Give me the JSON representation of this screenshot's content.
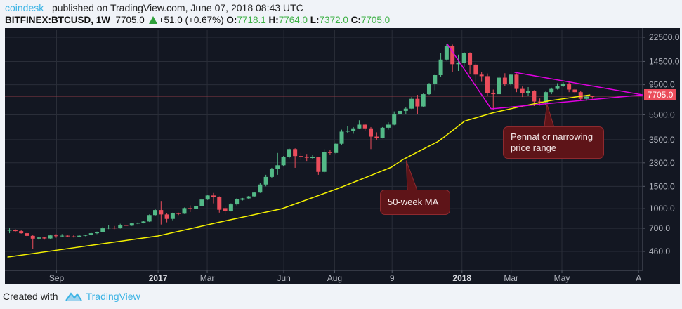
{
  "header": {
    "author": "coindesk_",
    "published": "published on TradingView.com, June 07, 2018 08:43 UTC",
    "symbol": "BITFINEX:BTCUSD, 1W",
    "last": "7705.0",
    "change": "+51.0 (+0.67%)",
    "o_label": "O:",
    "o": "7718.1",
    "h_label": "H:",
    "h": "7764.0",
    "l_label": "L:",
    "l": "7372.0",
    "c_label": "C:",
    "c": "7705.0"
  },
  "footer": {
    "created_with": "Created with",
    "brand": "TradingView"
  },
  "colors": {
    "up": "#53b987",
    "down": "#eb4d5c",
    "ma": "#f5f200",
    "pennant": "#e100e1",
    "background": "#131722",
    "grid": "#2a2e39"
  },
  "chart_data": {
    "type": "candlestick",
    "title": "",
    "xlabel": "",
    "ylabel": "",
    "y_scale": "log",
    "ylim": [
      326,
      25560
    ],
    "xlim": [
      "2016-07-01",
      "2018-08-06"
    ],
    "grid": true,
    "y_ticks": [
      "22500.0",
      "14500.0",
      "9500.0",
      "5500.0",
      "3500.0",
      "2300.0",
      "1500.0",
      "1000.0",
      "700.0",
      "460.0"
    ],
    "x_ticks": [
      {
        "date": "2016-09-01",
        "label": "Sep",
        "bold": false
      },
      {
        "date": "2017-01-01",
        "label": "2017",
        "bold": true
      },
      {
        "date": "2017-03-01",
        "label": "Mar",
        "bold": false
      },
      {
        "date": "2017-06-01",
        "label": "Jun",
        "bold": false
      },
      {
        "date": "2017-08-01",
        "label": "Aug",
        "bold": false
      },
      {
        "date": "2017-10-09",
        "label": "9",
        "bold": false
      },
      {
        "date": "2018-01-01",
        "label": "2018",
        "bold": true
      },
      {
        "date": "2018-03-01",
        "label": "Mar",
        "bold": false
      },
      {
        "date": "2018-05-01",
        "label": "May",
        "bold": false
      },
      {
        "date": "2018-08-01",
        "label": "A",
        "bold": false
      }
    ],
    "last_price_label": "7705.0",
    "last_price": 7705.0,
    "candles_columns": [
      "date",
      "open",
      "high",
      "low",
      "close"
    ],
    "candles": [
      [
        "2016-07-04",
        670,
        705,
        640,
        680
      ],
      [
        "2016-07-11",
        680,
        690,
        650,
        665
      ],
      [
        "2016-07-18",
        665,
        675,
        635,
        640
      ],
      [
        "2016-07-25",
        640,
        655,
        600,
        610
      ],
      [
        "2016-08-01",
        610,
        620,
        480,
        580
      ],
      [
        "2016-08-08",
        580,
        600,
        570,
        592
      ],
      [
        "2016-08-15",
        592,
        598,
        570,
        582
      ],
      [
        "2016-08-22",
        582,
        625,
        575,
        615
      ],
      [
        "2016-08-29",
        615,
        628,
        590,
        607
      ],
      [
        "2016-09-05",
        607,
        630,
        600,
        612
      ],
      [
        "2016-09-12",
        612,
        615,
        595,
        604
      ],
      [
        "2016-09-19",
        604,
        615,
        592,
        600
      ],
      [
        "2016-09-26",
        600,
        615,
        596,
        612
      ],
      [
        "2016-10-03",
        612,
        625,
        606,
        621
      ],
      [
        "2016-10-10",
        621,
        645,
        615,
        640
      ],
      [
        "2016-10-17",
        640,
        660,
        630,
        656
      ],
      [
        "2016-10-24",
        656,
        720,
        650,
        700
      ],
      [
        "2016-10-31",
        700,
        745,
        690,
        708
      ],
      [
        "2016-11-07",
        708,
        730,
        690,
        700
      ],
      [
        "2016-11-14",
        700,
        760,
        695,
        742
      ],
      [
        "2016-11-21",
        742,
        755,
        725,
        735
      ],
      [
        "2016-11-28",
        735,
        775,
        730,
        765
      ],
      [
        "2016-12-05",
        765,
        778,
        755,
        772
      ],
      [
        "2016-12-12",
        772,
        800,
        765,
        792
      ],
      [
        "2016-12-19",
        792,
        900,
        785,
        890
      ],
      [
        "2016-12-26",
        890,
        1000,
        880,
        975
      ],
      [
        "2017-01-02",
        975,
        1150,
        750,
        900
      ],
      [
        "2017-01-09",
        900,
        920,
        780,
        830
      ],
      [
        "2017-01-16",
        830,
        930,
        810,
        920
      ],
      [
        "2017-01-23",
        920,
        930,
        890,
        912
      ],
      [
        "2017-01-30",
        912,
        1020,
        908,
        1010
      ],
      [
        "2017-02-06",
        1010,
        1060,
        940,
        1000
      ],
      [
        "2017-02-13",
        1000,
        1050,
        990,
        1045
      ],
      [
        "2017-02-20",
        1045,
        1200,
        1040,
        1180
      ],
      [
        "2017-02-27",
        1180,
        1290,
        1170,
        1270
      ],
      [
        "2017-03-06",
        1270,
        1330,
        1100,
        1230
      ],
      [
        "2017-03-13",
        1230,
        1250,
        930,
        980
      ],
      [
        "2017-03-20",
        1010,
        1060,
        900,
        960
      ],
      [
        "2017-03-27",
        960,
        1100,
        950,
        1080
      ],
      [
        "2017-04-03",
        1080,
        1210,
        1060,
        1190
      ],
      [
        "2017-04-10",
        1175,
        1215,
        1160,
        1205
      ],
      [
        "2017-04-17",
        1205,
        1260,
        1195,
        1250
      ],
      [
        "2017-04-24",
        1250,
        1350,
        1240,
        1340
      ],
      [
        "2017-05-01",
        1340,
        1600,
        1330,
        1550
      ],
      [
        "2017-05-08",
        1550,
        1850,
        1500,
        1780
      ],
      [
        "2017-05-15",
        1780,
        2100,
        1750,
        2050
      ],
      [
        "2017-05-22",
        2050,
        2750,
        1850,
        2200
      ],
      [
        "2017-05-29",
        2200,
        2600,
        2150,
        2550
      ],
      [
        "2017-06-05",
        2550,
        2980,
        2500,
        2950
      ],
      [
        "2017-06-12",
        2950,
        2990,
        2100,
        2600
      ],
      [
        "2017-06-19",
        2600,
        2760,
        2420,
        2560
      ],
      [
        "2017-06-26",
        2560,
        2700,
        2380,
        2520
      ],
      [
        "2017-07-03",
        2520,
        2650,
        2450,
        2540
      ],
      [
        "2017-07-10",
        2540,
        2560,
        1850,
        1950
      ],
      [
        "2017-07-17",
        1950,
        2950,
        1900,
        2800
      ],
      [
        "2017-07-24",
        2800,
        2900,
        2650,
        2750
      ],
      [
        "2017-07-31",
        2750,
        3300,
        2700,
        3250
      ],
      [
        "2017-08-07",
        3250,
        4200,
        3200,
        4050
      ],
      [
        "2017-08-14",
        4050,
        4480,
        3950,
        4100
      ],
      [
        "2017-08-21",
        4100,
        4400,
        3900,
        4300
      ],
      [
        "2017-08-28",
        4300,
        4980,
        4250,
        4600
      ],
      [
        "2017-09-04",
        4600,
        4680,
        4100,
        4300
      ],
      [
        "2017-09-11",
        4300,
        4400,
        2950,
        3700
      ],
      [
        "2017-09-18",
        3700,
        4000,
        3500,
        3620
      ],
      [
        "2017-09-25",
        3620,
        4400,
        3580,
        4350
      ],
      [
        "2017-10-02",
        4350,
        4800,
        4200,
        4600
      ],
      [
        "2017-10-09",
        4600,
        5850,
        4550,
        5600
      ],
      [
        "2017-10-16",
        5600,
        6150,
        5100,
        5900
      ],
      [
        "2017-10-23",
        5900,
        6300,
        5600,
        6150
      ],
      [
        "2017-10-30",
        6150,
        7600,
        6100,
        7350
      ],
      [
        "2017-11-06",
        7350,
        7900,
        5600,
        6400
      ],
      [
        "2017-11-13",
        6400,
        8100,
        6300,
        8000
      ],
      [
        "2017-11-20",
        8000,
        9800,
        7900,
        9700
      ],
      [
        "2017-11-27",
        9700,
        11400,
        8600,
        11300
      ],
      [
        "2017-12-04",
        11300,
        16800,
        11000,
        15000
      ],
      [
        "2017-12-11",
        15000,
        19800,
        14700,
        19100
      ],
      [
        "2017-12-18",
        19100,
        19700,
        12000,
        13800
      ],
      [
        "2017-12-25",
        13800,
        16400,
        12200,
        14100
      ],
      [
        "2018-01-01",
        14100,
        17200,
        13000,
        16900
      ],
      [
        "2018-01-08",
        16900,
        17100,
        11500,
        13700
      ],
      [
        "2018-01-15",
        13700,
        14000,
        9200,
        11400
      ],
      [
        "2018-01-22",
        11400,
        12000,
        10000,
        11100
      ],
      [
        "2018-01-29",
        11100,
        11650,
        7700,
        8200
      ],
      [
        "2018-02-05",
        8200,
        8700,
        6000,
        8000
      ],
      [
        "2018-02-12",
        8000,
        11200,
        8000,
        10800
      ],
      [
        "2018-02-19",
        10800,
        11700,
        9300,
        9600
      ],
      [
        "2018-02-26",
        9600,
        11500,
        9400,
        11400
      ],
      [
        "2018-03-05",
        11400,
        11650,
        8300,
        8800
      ],
      [
        "2018-03-12",
        8800,
        9200,
        7600,
        8200
      ],
      [
        "2018-03-19",
        8200,
        9100,
        7800,
        8500
      ],
      [
        "2018-03-26",
        8500,
        8600,
        6450,
        7000
      ],
      [
        "2018-04-02",
        7000,
        7400,
        6500,
        6900
      ],
      [
        "2018-04-09",
        6900,
        8400,
        6600,
        8300
      ],
      [
        "2018-04-16",
        8300,
        9000,
        8000,
        8800
      ],
      [
        "2018-04-23",
        8800,
        9750,
        8700,
        9300
      ],
      [
        "2018-04-30",
        9300,
        9950,
        9100,
        9700
      ],
      [
        "2018-05-07",
        9700,
        9900,
        8300,
        8700
      ],
      [
        "2018-05-14",
        8700,
        8900,
        7950,
        8300
      ],
      [
        "2018-05-21",
        8300,
        8450,
        7200,
        7350
      ],
      [
        "2018-05-28",
        7350,
        7800,
        7100,
        7654
      ],
      [
        "2018-06-04",
        7718.1,
        7764.0,
        7372.0,
        7705.0
      ]
    ],
    "ma50": {
      "label": "50-week MA",
      "points": [
        [
          "2016-07-04",
          415
        ],
        [
          "2016-09-01",
          470
        ],
        [
          "2017-01-01",
          609
        ],
        [
          "2017-03-13",
          776
        ],
        [
          "2017-05-30",
          1000
        ],
        [
          "2017-08-06",
          1450
        ],
        [
          "2017-10-08",
          2120
        ],
        [
          "2017-10-22",
          2440
        ],
        [
          "2017-12-03",
          3380
        ],
        [
          "2017-12-10",
          3650
        ],
        [
          "2018-01-04",
          4900
        ],
        [
          "2018-02-07",
          5700
        ],
        [
          "2018-03-13",
          6400
        ],
        [
          "2018-04-16",
          7100
        ],
        [
          "2018-06-04",
          7900
        ]
      ]
    },
    "pennant_lines": [
      [
        [
          "2017-12-14",
          20000
        ],
        [
          "2018-02-05",
          6130
        ]
      ],
      [
        [
          "2018-02-05",
          6130
        ],
        [
          "2018-08-06",
          7900
        ]
      ],
      [
        [
          "2018-03-05",
          11900
        ],
        [
          "2018-08-06",
          7900
        ]
      ]
    ],
    "annotations": [
      {
        "text": "50-week MA",
        "target": [
          "2017-10-26",
          2400
        ]
      },
      {
        "text": "Pennat or narrowing price range",
        "target": [
          "2018-04-13",
          6700
        ]
      }
    ]
  }
}
